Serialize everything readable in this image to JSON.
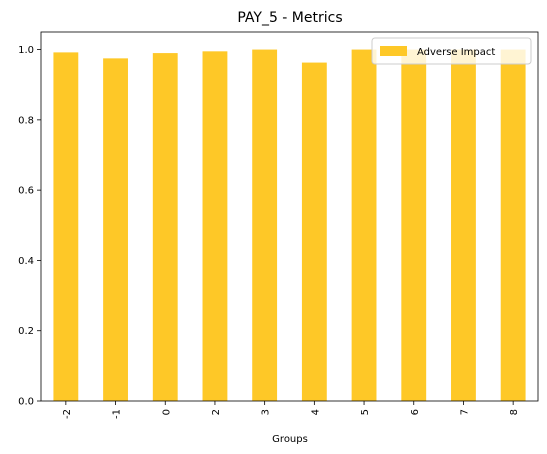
{
  "chart_data": {
    "type": "bar",
    "title": "PAY_5 - Metrics",
    "xlabel": "Groups",
    "ylabel": "",
    "categories": [
      "-2",
      "-1",
      "0",
      "2",
      "3",
      "4",
      "5",
      "6",
      "7",
      "8"
    ],
    "series": [
      {
        "name": "Adverse Impact",
        "color": "#fec827",
        "values": [
          0.992,
          0.975,
          0.99,
          0.995,
          1.0,
          0.963,
          1.0,
          1.0,
          1.0,
          1.0
        ]
      }
    ],
    "ylim": [
      0,
      1.05
    ],
    "yticks": [
      "0.0",
      "0.2",
      "0.4",
      "0.6",
      "0.8",
      "1.0"
    ],
    "grid": false,
    "legend_position": "top-right"
  }
}
